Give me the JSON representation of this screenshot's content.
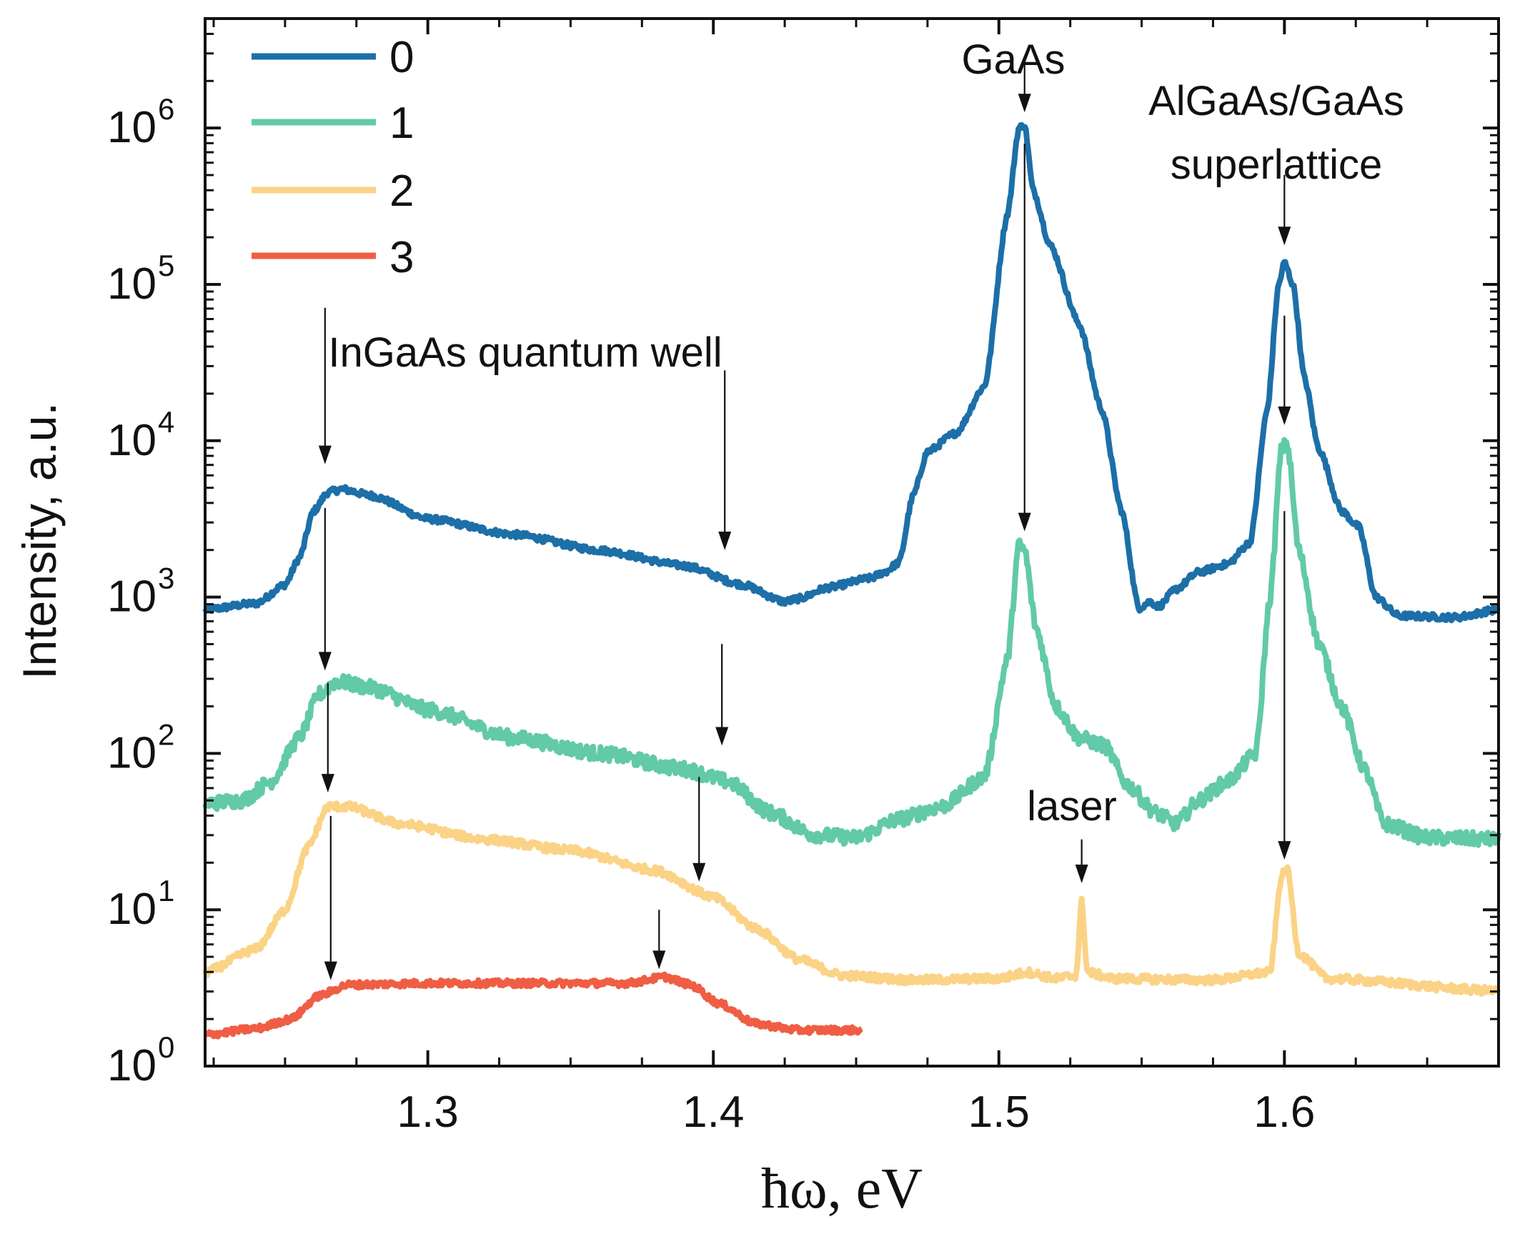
{
  "chart_data": {
    "type": "line",
    "title": "",
    "xlabel": "ħω, eV",
    "ylabel": "Intensity, a.u.",
    "xlim": [
      1.222,
      1.675
    ],
    "ylim_log10": [
      0,
      6.7
    ],
    "x_ticks": [
      {
        "value": 1.3,
        "label": "1.3"
      },
      {
        "value": 1.4,
        "label": "1.4"
      },
      {
        "value": 1.5,
        "label": "1.5"
      },
      {
        "value": 1.6,
        "label": "1.6"
      }
    ],
    "y_ticks": [
      {
        "exp": 0,
        "base": "10",
        "sup": "0"
      },
      {
        "exp": 1,
        "base": "10",
        "sup": "1"
      },
      {
        "exp": 2,
        "base": "10",
        "sup": "2"
      },
      {
        "exp": 3,
        "base": "10",
        "sup": "3"
      },
      {
        "exp": 4,
        "base": "10",
        "sup": "4"
      },
      {
        "exp": 5,
        "base": "10",
        "sup": "5"
      },
      {
        "exp": 6,
        "base": "10",
        "sup": "6"
      }
    ],
    "series": [
      {
        "name": "0",
        "color": "#1d6fa8",
        "noise": 0.02,
        "points": [
          [
            1.222,
            2.92
          ],
          [
            1.24,
            2.96
          ],
          [
            1.25,
            3.08
          ],
          [
            1.255,
            3.25
          ],
          [
            1.26,
            3.55
          ],
          [
            1.265,
            3.67
          ],
          [
            1.27,
            3.69
          ],
          [
            1.28,
            3.65
          ],
          [
            1.3,
            3.5
          ],
          [
            1.33,
            3.4
          ],
          [
            1.36,
            3.3
          ],
          [
            1.39,
            3.2
          ],
          [
            1.41,
            3.08
          ],
          [
            1.425,
            2.97
          ],
          [
            1.43,
            2.99
          ],
          [
            1.44,
            3.06
          ],
          [
            1.455,
            3.12
          ],
          [
            1.46,
            3.16
          ],
          [
            1.465,
            3.22
          ],
          [
            1.47,
            3.65
          ],
          [
            1.475,
            3.93
          ],
          [
            1.485,
            4.05
          ],
          [
            1.495,
            4.35
          ],
          [
            1.503,
            5.45
          ],
          [
            1.507,
            6.0
          ],
          [
            1.509,
            6.02
          ],
          [
            1.512,
            5.6
          ],
          [
            1.518,
            5.25
          ],
          [
            1.528,
            4.75
          ],
          [
            1.536,
            4.2
          ],
          [
            1.543,
            3.55
          ],
          [
            1.549,
            2.93
          ],
          [
            1.553,
            2.97
          ],
          [
            1.556,
            2.94
          ],
          [
            1.562,
            3.05
          ],
          [
            1.57,
            3.16
          ],
          [
            1.58,
            3.21
          ],
          [
            1.588,
            3.35
          ],
          [
            1.594,
            4.2
          ],
          [
            1.598,
            5.0
          ],
          [
            1.6,
            5.14
          ],
          [
            1.603,
            5.0
          ],
          [
            1.607,
            4.4
          ],
          [
            1.612,
            3.95
          ],
          [
            1.62,
            3.55
          ],
          [
            1.626,
            3.45
          ],
          [
            1.632,
            3.0
          ],
          [
            1.64,
            2.88
          ],
          [
            1.66,
            2.87
          ],
          [
            1.675,
            2.92
          ]
        ]
      },
      {
        "name": "1",
        "color": "#62caa8",
        "noise": 0.045,
        "points": [
          [
            1.222,
            1.68
          ],
          [
            1.235,
            1.7
          ],
          [
            1.245,
            1.82
          ],
          [
            1.255,
            2.1
          ],
          [
            1.262,
            2.38
          ],
          [
            1.268,
            2.46
          ],
          [
            1.28,
            2.42
          ],
          [
            1.3,
            2.28
          ],
          [
            1.33,
            2.1
          ],
          [
            1.36,
            2.0
          ],
          [
            1.39,
            1.9
          ],
          [
            1.405,
            1.82
          ],
          [
            1.42,
            1.62
          ],
          [
            1.435,
            1.48
          ],
          [
            1.45,
            1.46
          ],
          [
            1.465,
            1.58
          ],
          [
            1.48,
            1.66
          ],
          [
            1.495,
            1.85
          ],
          [
            1.503,
            2.6
          ],
          [
            1.507,
            3.33
          ],
          [
            1.509,
            3.3
          ],
          [
            1.513,
            2.8
          ],
          [
            1.52,
            2.3
          ],
          [
            1.528,
            2.1
          ],
          [
            1.537,
            2.05
          ],
          [
            1.545,
            1.8
          ],
          [
            1.555,
            1.62
          ],
          [
            1.562,
            1.55
          ],
          [
            1.57,
            1.7
          ],
          [
            1.58,
            1.82
          ],
          [
            1.59,
            2.0
          ],
          [
            1.595,
            3.0
          ],
          [
            1.599,
            3.95
          ],
          [
            1.601,
            3.98
          ],
          [
            1.605,
            3.3
          ],
          [
            1.612,
            2.7
          ],
          [
            1.62,
            2.3
          ],
          [
            1.628,
            1.9
          ],
          [
            1.635,
            1.55
          ],
          [
            1.65,
            1.46
          ],
          [
            1.675,
            1.45
          ]
        ]
      },
      {
        "name": "2",
        "color": "#fbd387",
        "noise": 0.025,
        "points": [
          [
            1.222,
            0.6
          ],
          [
            1.24,
            0.75
          ],
          [
            1.25,
            1.0
          ],
          [
            1.258,
            1.4
          ],
          [
            1.265,
            1.66
          ],
          [
            1.272,
            1.66
          ],
          [
            1.29,
            1.55
          ],
          [
            1.32,
            1.45
          ],
          [
            1.35,
            1.38
          ],
          [
            1.38,
            1.25
          ],
          [
            1.4,
            1.08
          ],
          [
            1.415,
            0.88
          ],
          [
            1.43,
            0.68
          ],
          [
            1.445,
            0.58
          ],
          [
            1.47,
            0.55
          ],
          [
            1.5,
            0.56
          ],
          [
            1.51,
            0.6
          ],
          [
            1.52,
            0.56
          ],
          [
            1.527,
            0.58
          ],
          [
            1.529,
            1.05
          ],
          [
            1.531,
            0.6
          ],
          [
            1.54,
            0.56
          ],
          [
            1.575,
            0.55
          ],
          [
            1.595,
            0.6
          ],
          [
            1.599,
            1.22
          ],
          [
            1.601,
            1.26
          ],
          [
            1.605,
            0.72
          ],
          [
            1.615,
            0.56
          ],
          [
            1.675,
            0.48
          ]
        ]
      },
      {
        "name": "3",
        "color": "#ef5e44",
        "noise": 0.02,
        "points": [
          [
            1.222,
            0.2
          ],
          [
            1.24,
            0.24
          ],
          [
            1.252,
            0.3
          ],
          [
            1.262,
            0.45
          ],
          [
            1.272,
            0.52
          ],
          [
            1.3,
            0.53
          ],
          [
            1.34,
            0.53
          ],
          [
            1.37,
            0.53
          ],
          [
            1.383,
            0.57
          ],
          [
            1.392,
            0.52
          ],
          [
            1.402,
            0.4
          ],
          [
            1.415,
            0.27
          ],
          [
            1.43,
            0.23
          ],
          [
            1.452,
            0.23
          ]
        ]
      }
    ],
    "legend_position": "top-left",
    "annotations": [
      {
        "text": "InGaAs quantum well"
      },
      {
        "text": "GaAs"
      },
      {
        "text": "AlGaAs/GaAs"
      },
      {
        "text": "superlattice"
      },
      {
        "text": "laser"
      }
    ],
    "arrow_markers": [
      {
        "x": 1.264,
        "from_log": 4.85,
        "to_log": 3.85
      },
      {
        "x": 1.264,
        "from_log": 3.57,
        "to_log": 2.53
      },
      {
        "x": 1.265,
        "from_log": 2.45,
        "to_log": 1.75
      },
      {
        "x": 1.266,
        "from_log": 1.6,
        "to_log": 0.55
      },
      {
        "x": 1.404,
        "from_log": 4.45,
        "to_log": 3.3
      },
      {
        "x": 1.403,
        "from_log": 2.7,
        "to_log": 2.05
      },
      {
        "x": 1.395,
        "from_log": 1.85,
        "to_log": 1.18
      },
      {
        "x": 1.381,
        "from_log": 1.0,
        "to_log": 0.62
      },
      {
        "x": 1.509,
        "from_log": 6.42,
        "to_log": 6.1
      },
      {
        "x": 1.509,
        "from_log": 5.9,
        "to_log": 3.42
      },
      {
        "x": 1.6,
        "from_log": 5.7,
        "to_log": 5.25
      },
      {
        "x": 1.6,
        "from_log": 4.8,
        "to_log": 4.1
      },
      {
        "x": 1.6,
        "from_log": 3.55,
        "to_log": 1.32
      },
      {
        "x": 1.529,
        "from_log": 1.45,
        "to_log": 1.17
      }
    ]
  }
}
